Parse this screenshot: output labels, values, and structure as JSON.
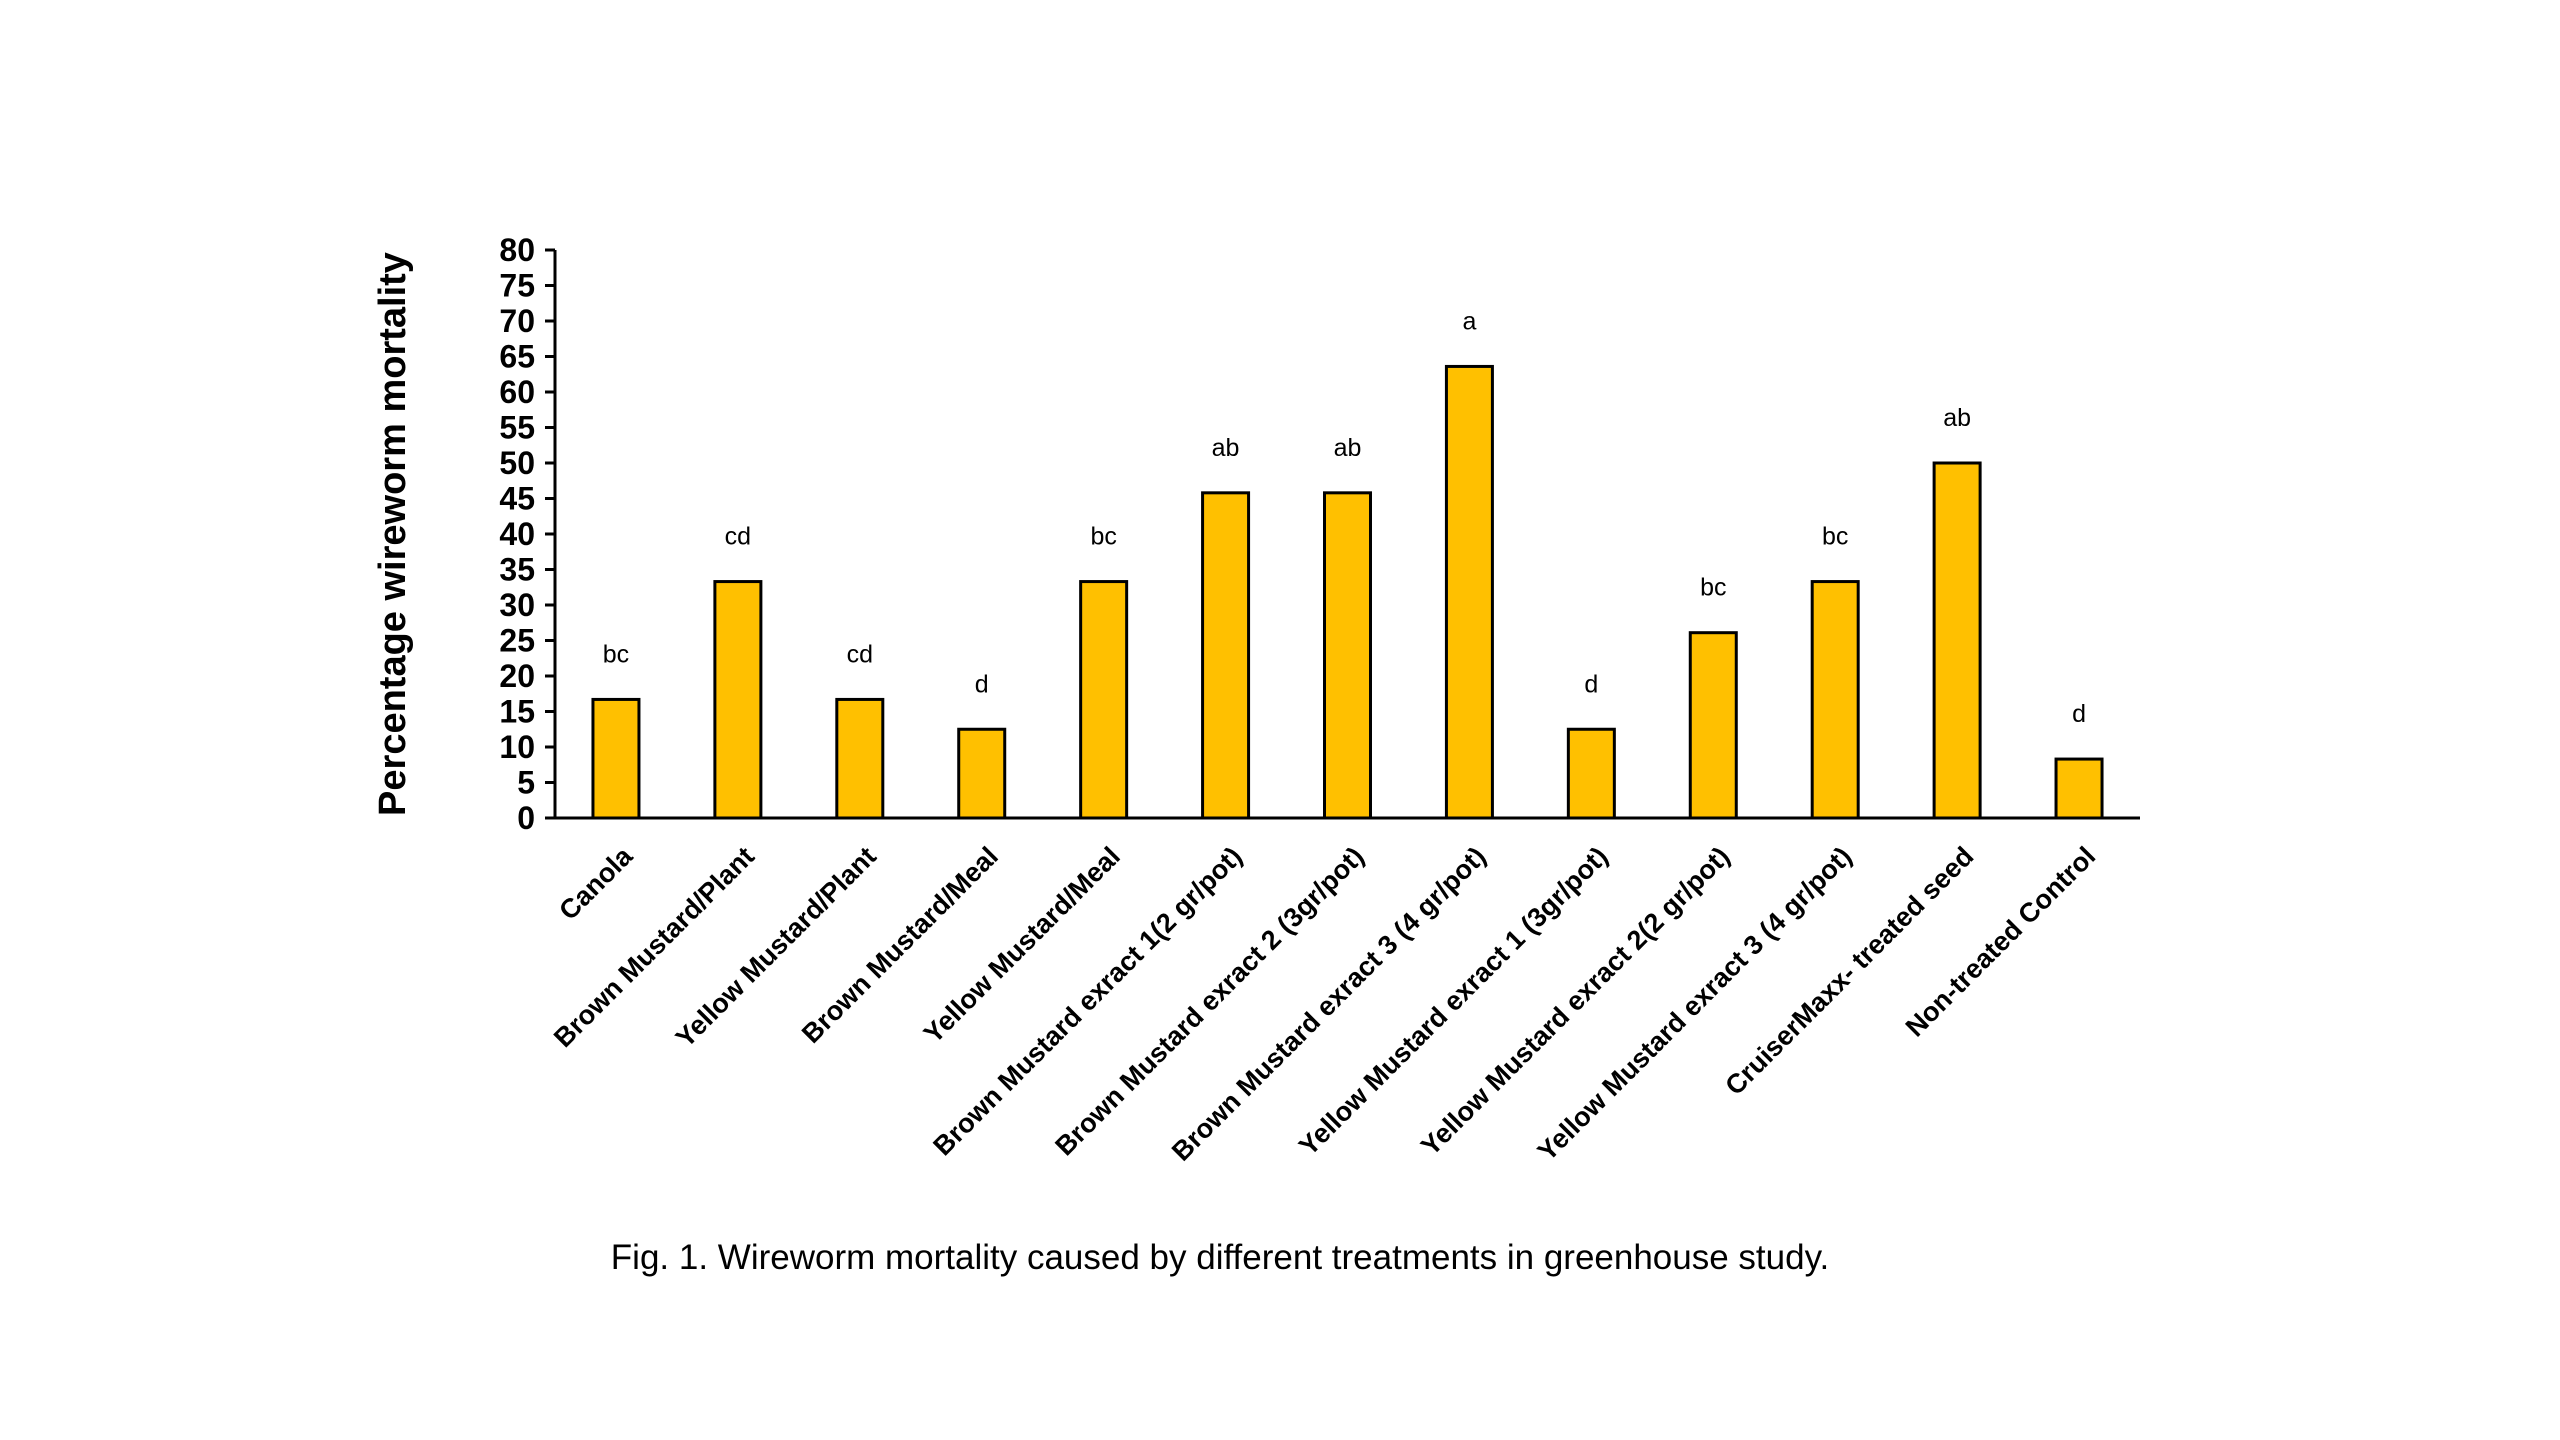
{
  "chart_data": {
    "type": "bar",
    "categories": [
      "Canola",
      "Brown Mustard/Plant",
      "Yellow Mustard/Plant",
      "Brown Mustard/Meal",
      "Yellow Mustard/Meal",
      "Brown Mustard exract 1(2 gr/pot)",
      "Brown Mustard exract 2 (3gr/pot)",
      "Brown Mustard exract 3 (4 gr/pot)",
      "Yellow Mustard exract 1 (3gr/pot)",
      "Yellow Mustard exract 2(2 gr/pot)",
      "Yellow Mustard exract 3 (4 gr/pot)",
      "CruiserMaxx- treated seed",
      "Non-treated Control"
    ],
    "values": [
      16.7,
      33.3,
      16.7,
      12.5,
      33.3,
      45.8,
      45.8,
      63.6,
      12.5,
      26.1,
      33.3,
      50.0,
      8.3
    ],
    "significance_letters": [
      "bc",
      "cd",
      "cd",
      "d",
      "bc",
      "ab",
      "ab",
      "a",
      "d",
      "bc",
      "bc",
      "ab",
      "d"
    ],
    "ylabel": "Percentage wireworm mortality",
    "xlabel": "",
    "ylim": [
      0,
      80
    ],
    "yticks": [
      0,
      5,
      10,
      15,
      20,
      25,
      30,
      35,
      40,
      45,
      50,
      55,
      60,
      65,
      70,
      75,
      80
    ],
    "grid": false,
    "bar_color": "#FFC000",
    "bar_edge_color": "#000000"
  },
  "caption": "Fig. 1. Wireworm mortality caused by different treatments in greenhouse study."
}
